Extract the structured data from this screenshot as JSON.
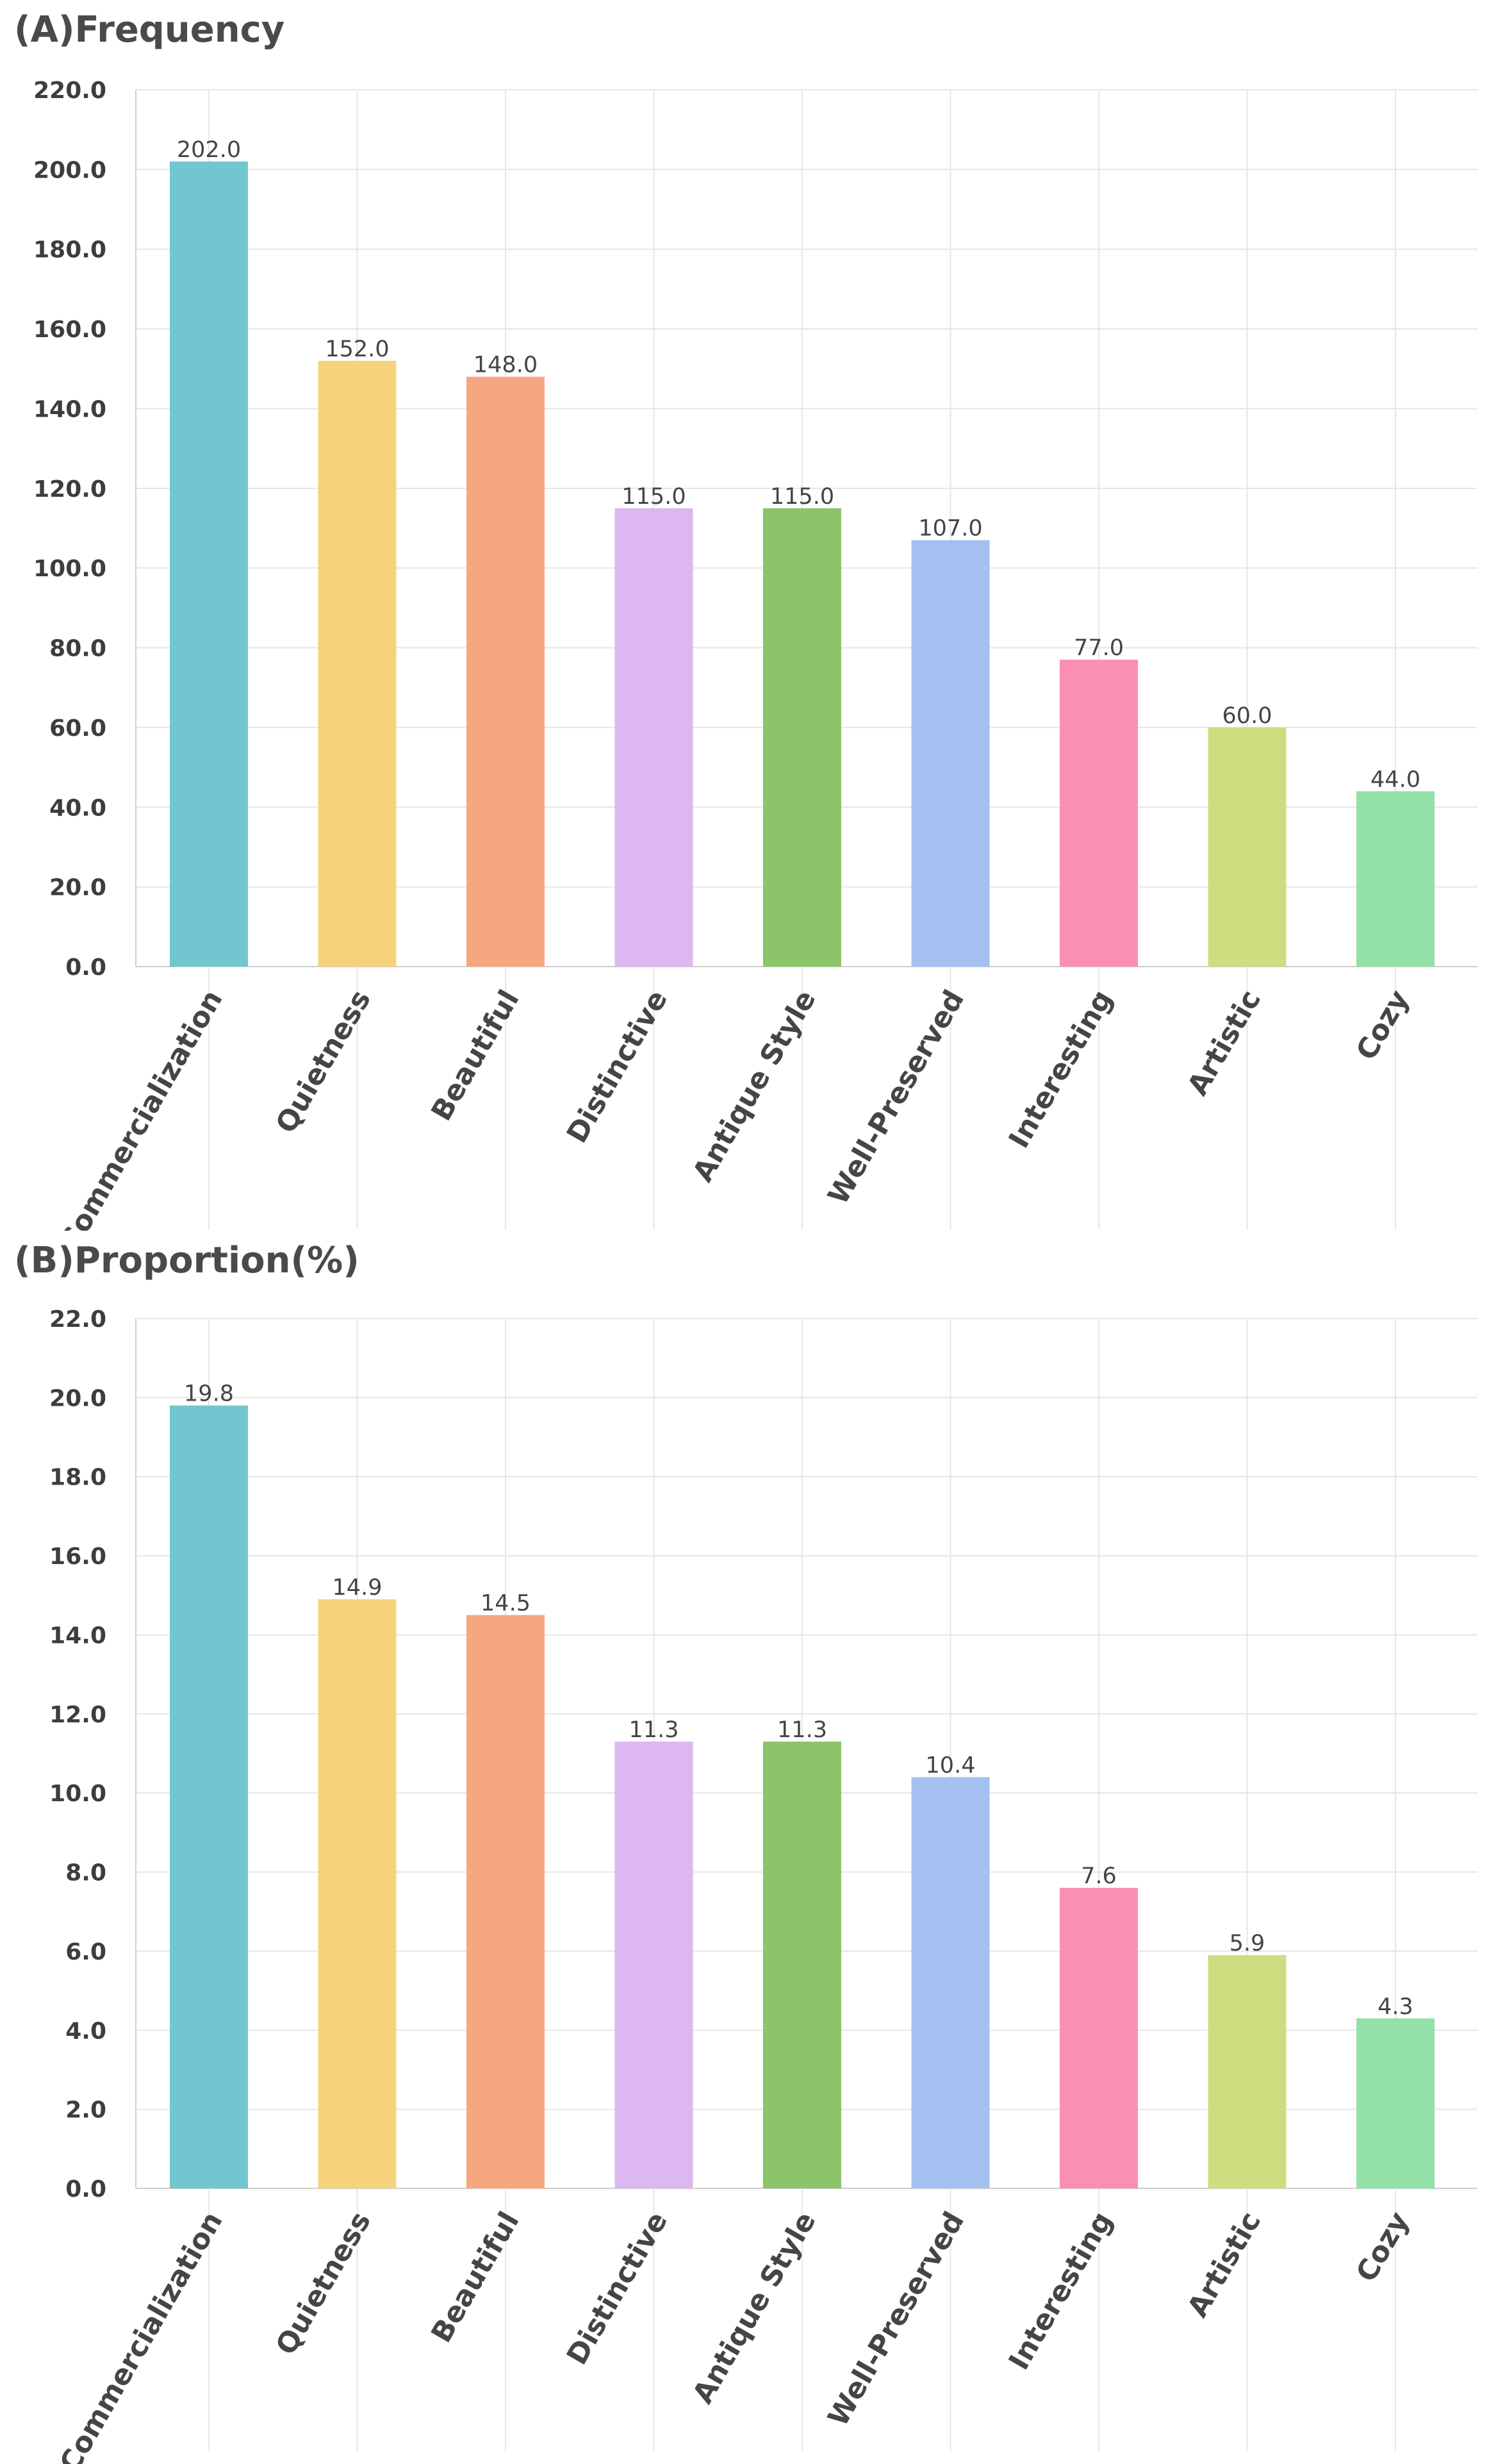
{
  "chart_data": [
    {
      "type": "bar",
      "title": "(A)Frequency",
      "categories": [
        "Commercialization",
        "Quietness",
        "Beautiful",
        "Distinctive",
        "Antique Style",
        "Well-Preserved",
        "Interesting",
        "Artistic",
        "Cozy"
      ],
      "values": [
        202.0,
        152.0,
        148.0,
        115.0,
        115.0,
        107.0,
        77.0,
        60.0,
        44.0
      ],
      "value_labels": [
        "202.0",
        "152.0",
        "148.0",
        "115.0",
        "115.0",
        "107.0",
        "77.0",
        "60.0",
        "44.0"
      ],
      "colors": [
        "#72c6cf",
        "#f6d27c",
        "#f7a77f",
        "#dcb7f0",
        "#8cc46a",
        "#a3c0f0",
        "#fb8fb1",
        "#cfdc80",
        "#93e0a8"
      ],
      "ylim": [
        0,
        220
      ],
      "yticks": [
        "0.0",
        "20.0",
        "40.0",
        "60.0",
        "80.0",
        "100.0",
        "120.0",
        "140.0",
        "160.0",
        "180.0",
        "200.0",
        "220.0"
      ],
      "grid": true,
      "xlabel": "",
      "ylabel": ""
    },
    {
      "type": "bar",
      "title": "(B)Proportion(%)",
      "categories": [
        "Commercialization",
        "Quietness",
        "Beautiful",
        "Distinctive",
        "Antique Style",
        "Well-Preserved",
        "Interesting",
        "Artistic",
        "Cozy"
      ],
      "values": [
        19.8,
        14.9,
        14.5,
        11.3,
        11.3,
        10.4,
        7.6,
        5.9,
        4.3
      ],
      "value_labels": [
        "19.8",
        "14.9",
        "14.5",
        "11.3",
        "11.3",
        "10.4",
        "7.6",
        "5.9",
        "4.3"
      ],
      "colors": [
        "#72c6cf",
        "#f6d27c",
        "#f7a77f",
        "#dcb7f0",
        "#8cc46a",
        "#a3c0f0",
        "#fb8fb1",
        "#cfdc80",
        "#93e0a8"
      ],
      "ylim": [
        0,
        22
      ],
      "yticks": [
        "0.0",
        "2.0",
        "4.0",
        "6.0",
        "8.0",
        "10.0",
        "12.0",
        "14.0",
        "16.0",
        "18.0",
        "20.0",
        "22.0"
      ],
      "grid": true,
      "xlabel": "",
      "ylabel": ""
    }
  ]
}
